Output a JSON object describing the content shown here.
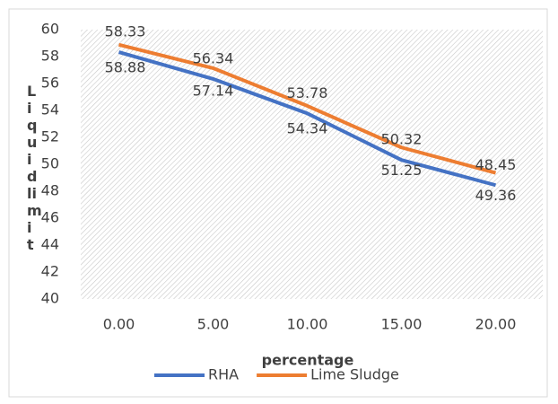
{
  "chart_data": {
    "type": "line",
    "x_label": "percentage",
    "y_label": "Liquid limit",
    "categories": [
      "0.00",
      "5.00",
      "10.00",
      "15.00",
      "20.00"
    ],
    "series": [
      {
        "name": "RHA",
        "color": "#4472c4",
        "values": [
          58.33,
          56.34,
          53.78,
          50.32,
          48.45
        ]
      },
      {
        "name": "Lime Sludge",
        "color": "#ed7d31",
        "values": [
          58.88,
          57.14,
          54.34,
          51.25,
          49.36
        ]
      }
    ],
    "ylim": [
      40,
      60
    ],
    "yticks": [
      40,
      42,
      44,
      46,
      48,
      50,
      52,
      54,
      56,
      58,
      60
    ],
    "legend": "bottom",
    "data_labels": true
  }
}
